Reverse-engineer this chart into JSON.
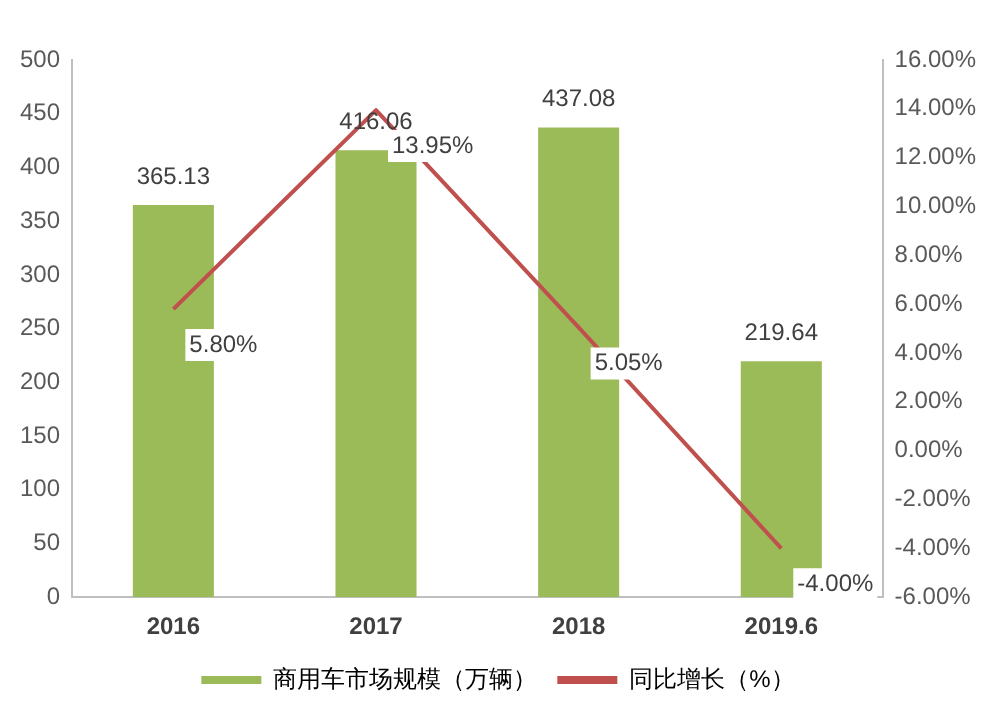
{
  "chart_data": {
    "type": "bar",
    "categories": [
      "2016",
      "2017",
      "2018",
      "2019.6"
    ],
    "series": [
      {
        "name": "商用车市场规模（万辆）",
        "color": "#9bbb59",
        "values": [
          365.13,
          416.06,
          437.08,
          219.64
        ],
        "value_labels": [
          "365.13",
          "416.06",
          "437.08",
          "219.64"
        ]
      },
      {
        "name": "同比增长（%）",
        "type": "line",
        "axis": "y2",
        "color": "#c0504d",
        "values": [
          5.8,
          13.95,
          5.05,
          -4.0
        ],
        "value_labels": [
          "5.80%",
          "13.95%",
          "5.05%",
          "-4.00%"
        ]
      }
    ],
    "ylim": [
      0,
      500
    ],
    "yticks": [
      0,
      50,
      100,
      150,
      200,
      250,
      300,
      350,
      400,
      450,
      500
    ],
    "y2lim": [
      -6,
      16
    ],
    "y2ticks": [
      {
        "value": -6,
        "label": "-6.00%"
      },
      {
        "value": -4,
        "label": "-4.00%"
      },
      {
        "value": -2,
        "label": "-2.00%"
      },
      {
        "value": 0,
        "label": "0.00%"
      },
      {
        "value": 2,
        "label": "2.00%"
      },
      {
        "value": 4,
        "label": "4.00%"
      },
      {
        "value": 6,
        "label": "6.00%"
      },
      {
        "value": 8,
        "label": "8.00%"
      },
      {
        "value": 10,
        "label": "10.00%"
      },
      {
        "value": 12,
        "label": "12.00%"
      },
      {
        "value": 14,
        "label": "14.00%"
      },
      {
        "value": 16,
        "label": "16.00%"
      }
    ],
    "grid": false,
    "legend": "bottom",
    "marker": "none"
  }
}
